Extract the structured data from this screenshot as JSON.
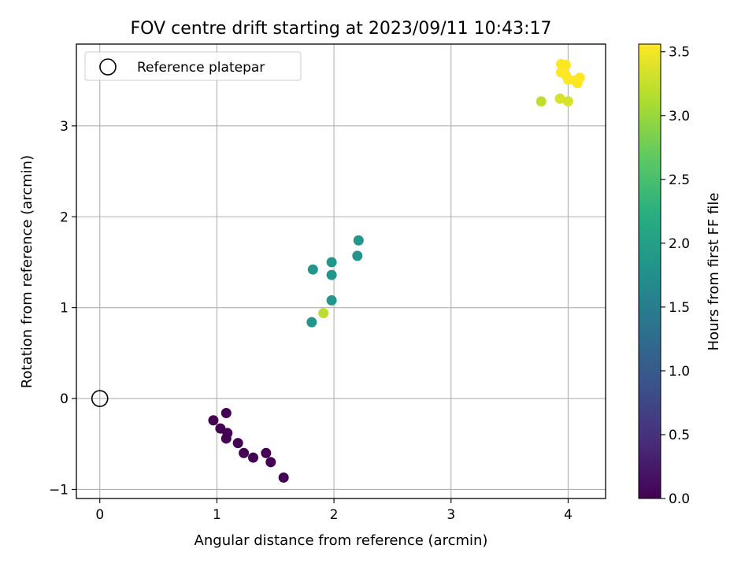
{
  "chart_data": {
    "type": "scatter",
    "title": "FOV centre drift starting at 2023/09/11 10:43:17",
    "xlabel": "Angular distance from reference (arcmin)",
    "ylabel": "Rotation from reference (arcmin)",
    "xlim": [
      -0.2,
      4.32
    ],
    "ylim": [
      -1.1,
      3.9
    ],
    "xticks": [
      0,
      1,
      2,
      3,
      4
    ],
    "yticks": [
      -1,
      0,
      1,
      2,
      3
    ],
    "grid": true,
    "legend": {
      "position": "top-left",
      "entries": [
        "Reference platepar"
      ]
    },
    "colorbar": {
      "label": "Hours from first FF file",
      "colormap": "viridis",
      "range": [
        0.0,
        3.56
      ],
      "ticks": [
        0.0,
        0.5,
        1.0,
        1.5,
        2.0,
        2.5,
        3.0,
        3.5
      ],
      "tick_labels": [
        "0.0",
        "0.5",
        "1.0",
        "1.5",
        "2.0",
        "2.5",
        "3.0",
        "3.5"
      ]
    },
    "reference_point": {
      "x": 0,
      "y": 0,
      "label": "Reference platepar"
    },
    "points": [
      {
        "x": 0.97,
        "y": -0.24,
        "c": 0.0
      },
      {
        "x": 1.03,
        "y": -0.33,
        "c": 0.0
      },
      {
        "x": 1.08,
        "y": -0.16,
        "c": 0.0
      },
      {
        "x": 1.09,
        "y": -0.38,
        "c": 0.0
      },
      {
        "x": 1.08,
        "y": -0.44,
        "c": 0.0
      },
      {
        "x": 1.18,
        "y": -0.49,
        "c": 0.0
      },
      {
        "x": 1.23,
        "y": -0.6,
        "c": 0.0
      },
      {
        "x": 1.31,
        "y": -0.65,
        "c": 0.0
      },
      {
        "x": 1.42,
        "y": -0.6,
        "c": 0.0
      },
      {
        "x": 1.46,
        "y": -0.7,
        "c": 0.0
      },
      {
        "x": 1.57,
        "y": -0.87,
        "c": 0.0
      },
      {
        "x": 1.81,
        "y": 0.84,
        "c": 1.85
      },
      {
        "x": 1.82,
        "y": 1.42,
        "c": 1.85
      },
      {
        "x": 1.98,
        "y": 1.5,
        "c": 1.85
      },
      {
        "x": 1.98,
        "y": 1.36,
        "c": 1.85
      },
      {
        "x": 1.98,
        "y": 1.08,
        "c": 1.85
      },
      {
        "x": 2.2,
        "y": 1.57,
        "c": 1.85
      },
      {
        "x": 2.21,
        "y": 1.74,
        "c": 1.85
      },
      {
        "x": 1.91,
        "y": 0.94,
        "c": 3.2
      },
      {
        "x": 3.77,
        "y": 3.27,
        "c": 3.2
      },
      {
        "x": 3.93,
        "y": 3.3,
        "c": 3.35
      },
      {
        "x": 4.0,
        "y": 3.27,
        "c": 3.35
      },
      {
        "x": 3.94,
        "y": 3.68,
        "c": 3.56
      },
      {
        "x": 3.98,
        "y": 3.67,
        "c": 3.56
      },
      {
        "x": 3.94,
        "y": 3.59,
        "c": 3.56
      },
      {
        "x": 3.98,
        "y": 3.56,
        "c": 3.56
      },
      {
        "x": 4.0,
        "y": 3.51,
        "c": 3.56
      },
      {
        "x": 4.06,
        "y": 3.5,
        "c": 3.56
      },
      {
        "x": 4.08,
        "y": 3.47,
        "c": 3.56
      },
      {
        "x": 4.1,
        "y": 3.53,
        "c": 3.56
      }
    ]
  }
}
